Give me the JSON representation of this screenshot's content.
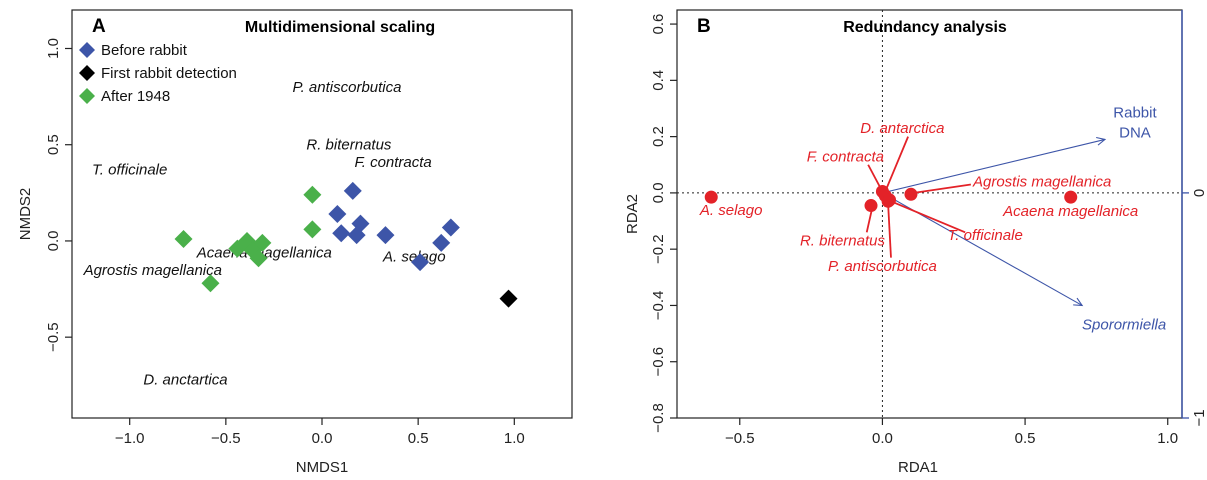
{
  "chart_data": [
    {
      "type": "scatter",
      "panel_label": "A",
      "title": "Multidimensional scaling",
      "xlabel": "NMDS1",
      "ylabel": "NMDS2",
      "xlim": [
        -1.3,
        1.3
      ],
      "ylim": [
        -0.92,
        1.2
      ],
      "xticks": [
        "-1.0",
        "-0.5",
        "0.0",
        "0.5",
        "1.0"
      ],
      "yticks": [
        "-0.5",
        "0.0",
        "0.5",
        "1.0"
      ],
      "series": [
        {
          "name": "Before rabbit",
          "color": "#3d55a8",
          "points": [
            [
              0.16,
              0.26
            ],
            [
              0.08,
              0.14
            ],
            [
              0.2,
              0.09
            ],
            [
              0.1,
              0.04
            ],
            [
              0.18,
              0.03
            ],
            [
              0.33,
              0.03
            ],
            [
              0.67,
              0.07
            ],
            [
              0.62,
              -0.01
            ],
            [
              0.51,
              -0.11
            ]
          ]
        },
        {
          "name": "First rabbit detection",
          "color": "#000000",
          "points": [
            [
              0.97,
              -0.3
            ]
          ]
        },
        {
          "name": "After 1948",
          "color": "#4ab04a",
          "points": [
            [
              -0.05,
              0.24
            ],
            [
              -0.05,
              0.06
            ],
            [
              -0.72,
              0.01
            ],
            [
              -0.44,
              -0.04
            ],
            [
              -0.39,
              0.0
            ],
            [
              -0.31,
              -0.01
            ],
            [
              -0.36,
              -0.05
            ],
            [
              -0.33,
              -0.09
            ],
            [
              -0.58,
              -0.22
            ]
          ]
        }
      ],
      "annotations": [
        {
          "text": "P. antiscorbutica",
          "x": 0.13,
          "y": 0.8
        },
        {
          "text": "R. biternatus",
          "x": 0.14,
          "y": 0.5
        },
        {
          "text": "F. contracta",
          "x": 0.37,
          "y": 0.41
        },
        {
          "text": "T. officinale",
          "x": -1.0,
          "y": 0.37
        },
        {
          "text": "Acaena magellanica",
          "x": -0.3,
          "y": -0.06
        },
        {
          "text": "A. selago",
          "x": 0.48,
          "y": -0.08
        },
        {
          "text": "Agrostis magellanica",
          "x": -0.88,
          "y": -0.15
        },
        {
          "text": "D. anctartica",
          "x": -0.71,
          "y": -0.72
        }
      ]
    },
    {
      "type": "scatter",
      "panel_label": "B",
      "title": "Redundancy analysis",
      "xlabel": "RDA1",
      "ylabel": "RDA2",
      "xlim": [
        -0.72,
        1.05
      ],
      "ylim": [
        -0.8,
        0.65
      ],
      "xticks": [
        "-0.5",
        "0.0",
        "0.5",
        "1.0"
      ],
      "yticks": [
        "-0.8",
        "-0.6",
        "-0.4",
        "-0.2",
        "0.0",
        "0.2",
        "0.4",
        "0.6"
      ],
      "right_axis_ticks": [
        "0",
        "-1"
      ],
      "point_color": "#e32228",
      "species": [
        {
          "text": "A. selago",
          "x": -0.6,
          "y": -0.015
        },
        {
          "text": "Acaena magellanica",
          "x": 0.66,
          "y": -0.015
        },
        {
          "text": "Agrostis magellanica",
          "x": 0.1,
          "y": -0.005
        },
        {
          "text": "D. antarctica",
          "x": 0.0,
          "y": 0.005
        },
        {
          "text": "F. contracta",
          "x": 0.01,
          "y": -0.01
        },
        {
          "text": "R. biternatus",
          "x": -0.04,
          "y": -0.045
        },
        {
          "text": "P. antiscorbutica",
          "x": 0.02,
          "y": -0.03
        },
        {
          "text": "T. officinale",
          "x": 0.025,
          "y": -0.025
        }
      ],
      "env_color": "#3d55a8",
      "env_vectors": [
        {
          "text_lines": [
            "Rabbit",
            "DNA"
          ],
          "x": 0.78,
          "y": 0.19
        },
        {
          "text_lines": [
            "Sporormiella"
          ],
          "x": 0.7,
          "y": -0.4
        }
      ]
    }
  ]
}
